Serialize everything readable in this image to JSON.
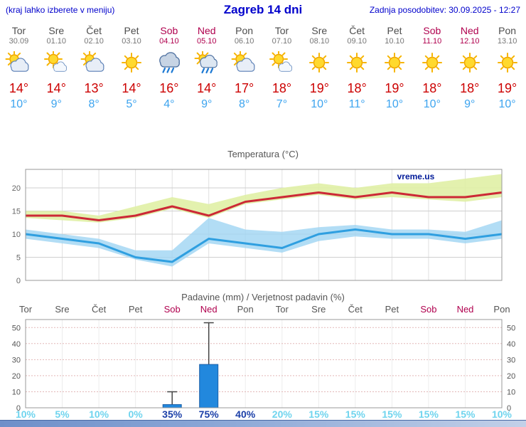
{
  "header": {
    "left_note": "(kraj lahko izberete v meniju)",
    "title": "Zagreb 14 dni",
    "updated": "Zadnja posodobitev: 30.09.2025 - 12:27"
  },
  "colors": {
    "link_blue": "#0000cc",
    "weekday": "#4d4d4d",
    "date_gray": "#777777",
    "weekend": "#b0004e",
    "high_temp": "#cc0000",
    "low_temp": "#3da4ef",
    "band_high": "#e0efa5",
    "band_low": "#9fd4f2",
    "line_high": "#cc2936",
    "line_low": "#2f9fe0",
    "bar_fill": "#2288dd",
    "bar_edge": "#1a5fa8",
    "prob_low": "#6fd4ee",
    "prob_high": "#1b3fa8",
    "annotation_blue": "#001a99"
  },
  "days": [
    {
      "name": "Tor",
      "date": "30.09",
      "icon": "sun-behind-cloud",
      "high": "14°",
      "low": "10°",
      "weekend": false
    },
    {
      "name": "Sre",
      "date": "01.10",
      "icon": "partly-sunny",
      "high": "14°",
      "low": "9°",
      "weekend": false
    },
    {
      "name": "Čet",
      "date": "02.10",
      "icon": "sun-behind-cloud",
      "high": "13°",
      "low": "8°",
      "weekend": false
    },
    {
      "name": "Pet",
      "date": "03.10",
      "icon": "sunny",
      "high": "14°",
      "low": "5°",
      "weekend": false
    },
    {
      "name": "Sob",
      "date": "04.10",
      "icon": "rain",
      "high": "16°",
      "low": "4°",
      "weekend": true
    },
    {
      "name": "Ned",
      "date": "05.10",
      "icon": "sun-cloud-rain",
      "high": "14°",
      "low": "9°",
      "weekend": true
    },
    {
      "name": "Pon",
      "date": "06.10",
      "icon": "sun-behind-cloud",
      "high": "17°",
      "low": "8°",
      "weekend": false
    },
    {
      "name": "Tor",
      "date": "07.10",
      "icon": "partly-sunny",
      "high": "18°",
      "low": "7°",
      "weekend": false
    },
    {
      "name": "Sre",
      "date": "08.10",
      "icon": "sunny",
      "high": "19°",
      "low": "10°",
      "weekend": false
    },
    {
      "name": "Čet",
      "date": "09.10",
      "icon": "sunny",
      "high": "18°",
      "low": "11°",
      "weekend": false
    },
    {
      "name": "Pet",
      "date": "10.10",
      "icon": "sunny",
      "high": "19°",
      "low": "10°",
      "weekend": false
    },
    {
      "name": "Sob",
      "date": "11.10",
      "icon": "sunny",
      "high": "18°",
      "low": "10°",
      "weekend": true
    },
    {
      "name": "Ned",
      "date": "12.10",
      "icon": "sunny",
      "high": "18°",
      "low": "9°",
      "weekend": true
    },
    {
      "name": "Pon",
      "date": "13.10",
      "icon": "sunny",
      "high": "19°",
      "low": "10°",
      "weekend": false
    }
  ],
  "chart_data": [
    {
      "type": "line",
      "title": "Temperatura (°C)",
      "x": [
        "Tor",
        "Sre",
        "Čet",
        "Pet",
        "Sob",
        "Ned",
        "Pon",
        "Tor",
        "Sre",
        "Čet",
        "Pet",
        "Sob",
        "Ned",
        "Pon"
      ],
      "ylim": [
        0,
        24
      ],
      "yticks": [
        0,
        5,
        10,
        15,
        20
      ],
      "annotation": "vreme.us",
      "grid": true,
      "series": [
        {
          "name": "max",
          "values": [
            14,
            14,
            13,
            14,
            16,
            14,
            17,
            18,
            19,
            18,
            19,
            18,
            18,
            19
          ]
        },
        {
          "name": "max_upper",
          "values": [
            15,
            15,
            14,
            16,
            18,
            16.5,
            18.5,
            20,
            21,
            20,
            21,
            21,
            22,
            23
          ]
        },
        {
          "name": "max_lower",
          "values": [
            13.5,
            13,
            12.5,
            13.5,
            15.5,
            13.5,
            16.5,
            17.5,
            18.5,
            17.5,
            18,
            17.5,
            17,
            18
          ]
        },
        {
          "name": "min",
          "values": [
            10,
            9,
            8,
            5,
            4,
            9,
            8,
            7,
            10,
            11,
            10,
            10,
            9,
            10
          ]
        },
        {
          "name": "min_upper",
          "values": [
            11,
            10,
            9,
            6.5,
            6.5,
            13.5,
            11,
            10.5,
            11.5,
            12,
            11,
            11,
            10.5,
            13
          ]
        },
        {
          "name": "min_lower",
          "values": [
            9,
            8,
            7,
            4.5,
            3,
            8,
            7,
            6,
            8.5,
            9.5,
            9,
            9,
            8,
            9
          ]
        }
      ]
    },
    {
      "type": "bar",
      "title": "Padavine (mm) / Verjetnost padavin (%)",
      "categories": [
        "Tor",
        "Sre",
        "Čet",
        "Pet",
        "Sob",
        "Ned",
        "Pon",
        "Tor",
        "Sre",
        "Čet",
        "Pet",
        "Sob",
        "Ned",
        "Pon"
      ],
      "values": [
        0,
        0,
        0,
        0,
        2,
        27,
        0,
        0,
        0,
        0,
        0,
        0,
        0,
        0
      ],
      "whisker_high": [
        0,
        0,
        0,
        0,
        10,
        53,
        0,
        0,
        0,
        0,
        0,
        0,
        0,
        0
      ],
      "probabilities": [
        "10%",
        "5%",
        "10%",
        "0%",
        "35%",
        "75%",
        "40%",
        "20%",
        "15%",
        "15%",
        "15%",
        "15%",
        "15%",
        "10%"
      ],
      "ylim": [
        0,
        55
      ],
      "yticks": [
        0,
        10,
        20,
        30,
        40,
        50
      ]
    }
  ]
}
